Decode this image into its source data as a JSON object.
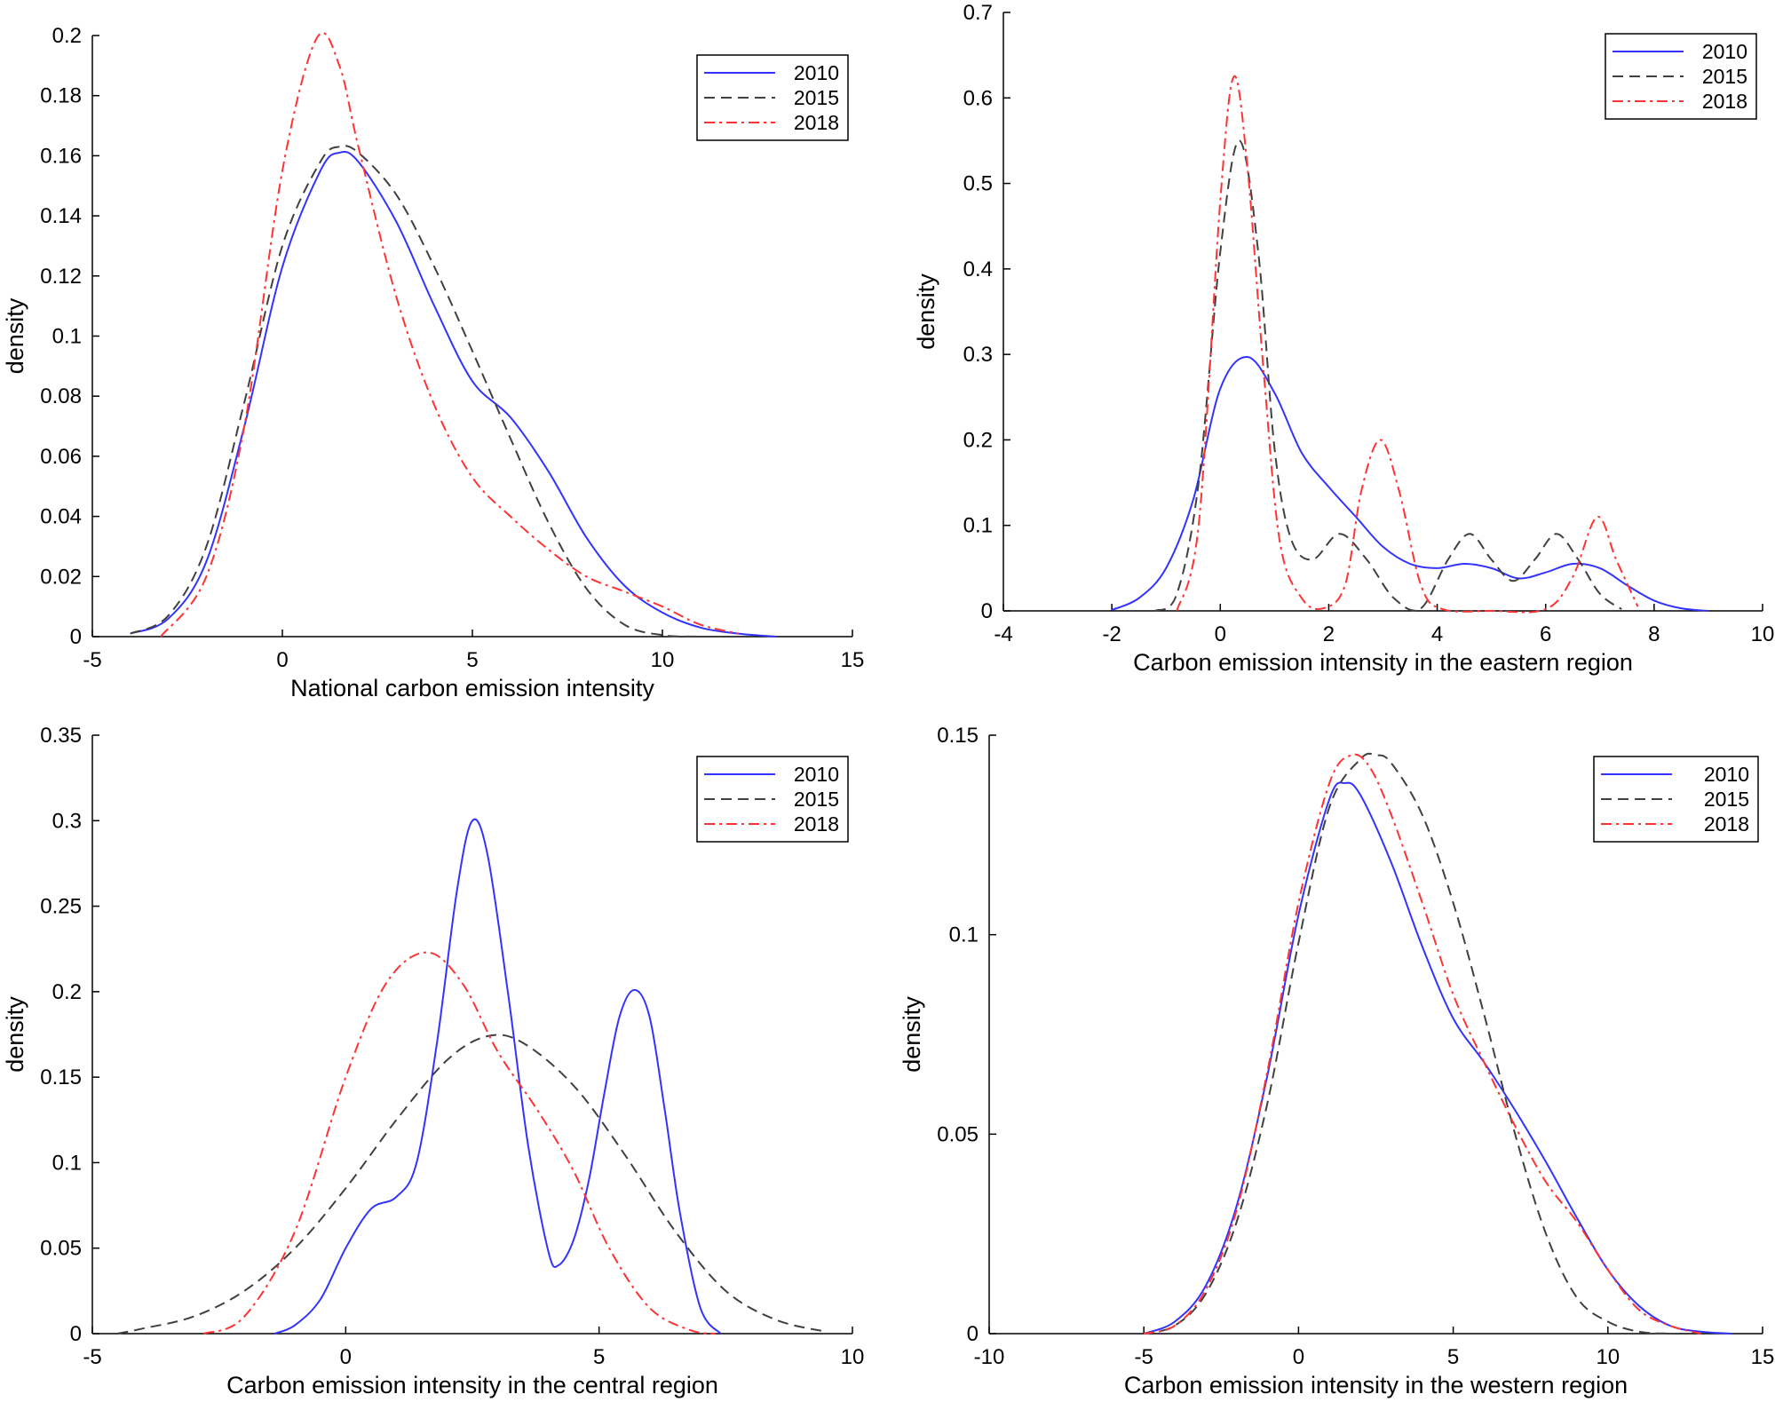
{
  "colors": {
    "2010": "#3333ff",
    "2015": "#404040",
    "2018": "#ff3333"
  },
  "chart_data": [
    {
      "type": "line",
      "xlabel": "National carbon emission intensity",
      "ylabel": "density",
      "xlim": [
        -5,
        15
      ],
      "ylim": [
        0,
        0.2
      ],
      "xticks": [
        -5,
        0,
        5,
        10,
        15
      ],
      "xtick_labels": [
        "-5",
        "0",
        "5",
        "10",
        "15"
      ],
      "yticks": [
        0,
        0.02,
        0.04,
        0.06,
        0.08,
        0.1,
        0.12,
        0.14,
        0.16,
        0.18,
        0.2
      ],
      "ytick_labels": [
        "0",
        "0.02",
        "0.04",
        "0.06",
        "0.08",
        "0.1",
        "0.12",
        "0.14",
        "0.16",
        "0.18",
        "0.2"
      ],
      "legend": "top-right",
      "series": [
        {
          "name": "2010",
          "style": "solid",
          "x": [
            -4,
            -3,
            -2,
            -1,
            0,
            1,
            1.5,
            2,
            3,
            4,
            5,
            6,
            7,
            8,
            9,
            10,
            11,
            12,
            13
          ],
          "y": [
            0.001,
            0.006,
            0.025,
            0.07,
            0.123,
            0.155,
            0.161,
            0.158,
            0.138,
            0.11,
            0.085,
            0.073,
            0.055,
            0.033,
            0.017,
            0.008,
            0.003,
            0.001,
            0.0
          ]
        },
        {
          "name": "2015",
          "style": "dash",
          "x": [
            -4,
            -3,
            -2,
            -1,
            0,
            1,
            1.5,
            2,
            3,
            4,
            5,
            6,
            7,
            8,
            9,
            10,
            11
          ],
          "y": [
            0.001,
            0.007,
            0.03,
            0.078,
            0.13,
            0.158,
            0.163,
            0.161,
            0.147,
            0.123,
            0.095,
            0.066,
            0.038,
            0.016,
            0.004,
            0.0005,
            0.0
          ]
        },
        {
          "name": "2018",
          "style": "dashdot",
          "x": [
            -3.2,
            -2,
            -1,
            0,
            0.9,
            1.5,
            2,
            3,
            4,
            5,
            6,
            7,
            8,
            9,
            10,
            11,
            12
          ],
          "y": [
            0.0,
            0.02,
            0.07,
            0.155,
            0.199,
            0.19,
            0.163,
            0.113,
            0.077,
            0.053,
            0.04,
            0.029,
            0.02,
            0.015,
            0.01,
            0.004,
            0.001
          ]
        }
      ]
    },
    {
      "type": "line",
      "xlabel": "Carbon emission intensity in the eastern region",
      "ylabel": "density",
      "xlim": [
        -4,
        10
      ],
      "ylim": [
        0,
        0.7
      ],
      "xticks": [
        -4,
        -2,
        0,
        2,
        4,
        6,
        8,
        10
      ],
      "xtick_labels": [
        "-4",
        "-2",
        "0",
        "2",
        "4",
        "6",
        "8",
        "10"
      ],
      "yticks": [
        0,
        0.1,
        0.2,
        0.3,
        0.4,
        0.5,
        0.6,
        0.7
      ],
      "ytick_labels": [
        "0",
        "0.1",
        "0.2",
        "0.3",
        "0.4",
        "0.5",
        "0.6",
        "0.7"
      ],
      "legend": "top-right",
      "series": [
        {
          "name": "2010",
          "style": "solid",
          "x": [
            -2,
            -1.5,
            -1,
            -0.5,
            0,
            0.5,
            1,
            1.5,
            2,
            2.5,
            3,
            3.5,
            4,
            4.5,
            5,
            5.5,
            6,
            6.5,
            7,
            7.5,
            8,
            8.5,
            9
          ],
          "y": [
            0.001,
            0.015,
            0.05,
            0.13,
            0.26,
            0.297,
            0.255,
            0.185,
            0.145,
            0.11,
            0.075,
            0.055,
            0.05,
            0.055,
            0.05,
            0.038,
            0.045,
            0.055,
            0.05,
            0.03,
            0.012,
            0.003,
            0.0
          ]
        },
        {
          "name": "2015",
          "style": "dash",
          "x": [
            -1.2,
            -0.8,
            -0.4,
            0,
            0.35,
            0.7,
            1.0,
            1.3,
            1.7,
            2.2,
            2.7,
            3.2,
            3.7,
            4.2,
            4.6,
            5.0,
            5.4,
            5.8,
            6.2,
            6.6,
            7.0,
            7.4
          ],
          "y": [
            0.0,
            0.02,
            0.15,
            0.42,
            0.55,
            0.42,
            0.19,
            0.085,
            0.06,
            0.09,
            0.06,
            0.015,
            0.003,
            0.06,
            0.09,
            0.06,
            0.035,
            0.06,
            0.09,
            0.06,
            0.02,
            0.002
          ]
        },
        {
          "name": "2018",
          "style": "dashdot",
          "x": [
            -0.8,
            -0.4,
            0,
            0.25,
            0.5,
            0.8,
            1.1,
            1.5,
            1.9,
            2.3,
            2.6,
            2.95,
            3.3,
            3.7,
            4.1,
            5.0,
            6.0,
            6.5,
            6.95,
            7.3,
            7.7
          ],
          "y": [
            0.0,
            0.1,
            0.48,
            0.625,
            0.52,
            0.28,
            0.08,
            0.015,
            0.003,
            0.03,
            0.14,
            0.2,
            0.14,
            0.03,
            0.002,
            0.0,
            0.002,
            0.04,
            0.11,
            0.06,
            0.005
          ]
        }
      ]
    },
    {
      "type": "line",
      "xlabel": "Carbon emission intensity in the central region",
      "ylabel": "density",
      "xlim": [
        -5,
        10
      ],
      "ylim": [
        0,
        0.35
      ],
      "xticks": [
        -5,
        0,
        5,
        10
      ],
      "xtick_labels": [
        "-5",
        "0",
        "5",
        "10"
      ],
      "yticks": [
        0,
        0.05,
        0.1,
        0.15,
        0.2,
        0.25,
        0.3,
        0.35
      ],
      "ytick_labels": [
        "0",
        "0.05",
        "0.1",
        "0.15",
        "0.2",
        "0.25",
        "0.3",
        "0.35"
      ],
      "legend": "top-right",
      "series": [
        {
          "name": "2010",
          "style": "solid",
          "x": [
            -1.4,
            -1,
            -0.5,
            0,
            0.5,
            1,
            1.4,
            1.8,
            2.2,
            2.5,
            2.8,
            3.2,
            3.6,
            4.0,
            4.2,
            4.5,
            4.8,
            5.1,
            5.4,
            5.7,
            6.0,
            6.3,
            6.6,
            7.0,
            7.4
          ],
          "y": [
            0.0,
            0.005,
            0.02,
            0.05,
            0.073,
            0.08,
            0.1,
            0.17,
            0.26,
            0.3,
            0.28,
            0.2,
            0.11,
            0.048,
            0.04,
            0.055,
            0.09,
            0.14,
            0.185,
            0.201,
            0.185,
            0.13,
            0.07,
            0.015,
            0.0
          ]
        },
        {
          "name": "2015",
          "style": "dash",
          "x": [
            -4.5,
            -4,
            -3,
            -2,
            -1,
            0,
            1,
            2,
            2.8,
            3.5,
            4.5,
            5.5,
            6.5,
            7.5,
            8.5,
            9.5
          ],
          "y": [
            0.0,
            0.003,
            0.01,
            0.025,
            0.05,
            0.085,
            0.125,
            0.16,
            0.174,
            0.17,
            0.145,
            0.105,
            0.06,
            0.025,
            0.008,
            0.001
          ]
        },
        {
          "name": "2018",
          "style": "dashdot",
          "x": [
            -2.8,
            -2,
            -1,
            0,
            0.8,
            1.6,
            2.3,
            3,
            3.8,
            4.5,
            5.2,
            6,
            6.8,
            7.3
          ],
          "y": [
            0.0,
            0.01,
            0.06,
            0.15,
            0.205,
            0.223,
            0.205,
            0.165,
            0.13,
            0.095,
            0.05,
            0.015,
            0.002,
            0.0
          ]
        }
      ]
    },
    {
      "type": "line",
      "xlabel": "Carbon emission intensity in the western region",
      "ylabel": "density",
      "xlim": [
        -10,
        15
      ],
      "ylim": [
        0,
        0.15
      ],
      "xticks": [
        -10,
        -5,
        0,
        5,
        10,
        15
      ],
      "xtick_labels": [
        "-10",
        "-5",
        "0",
        "5",
        "10",
        "15"
      ],
      "yticks": [
        0,
        0.05,
        0.1,
        0.15
      ],
      "ytick_labels": [
        "0",
        "0.05",
        "0.1",
        "0.15"
      ],
      "legend": "top-right",
      "series": [
        {
          "name": "2010",
          "style": "solid",
          "x": [
            -5,
            -4,
            -3,
            -2,
            -1,
            0,
            1,
            1.5,
            2,
            3,
            4,
            5,
            6,
            7,
            8,
            9,
            10,
            11,
            12,
            13,
            14
          ],
          "y": [
            0.0,
            0.003,
            0.012,
            0.032,
            0.065,
            0.105,
            0.134,
            0.138,
            0.135,
            0.118,
            0.097,
            0.079,
            0.068,
            0.056,
            0.043,
            0.029,
            0.016,
            0.007,
            0.002,
            0.0005,
            0.0
          ]
        },
        {
          "name": "2015",
          "style": "dash",
          "x": [
            -5,
            -4,
            -3,
            -2,
            -1,
            0,
            1,
            2,
            2.5,
            3,
            4,
            5,
            6,
            7,
            8,
            9,
            10,
            11,
            12
          ],
          "y": [
            0.0,
            0.002,
            0.01,
            0.028,
            0.058,
            0.098,
            0.132,
            0.144,
            0.145,
            0.143,
            0.13,
            0.108,
            0.08,
            0.05,
            0.025,
            0.009,
            0.003,
            0.0005,
            0.0
          ]
        },
        {
          "name": "2018",
          "style": "dashdot",
          "x": [
            -5,
            -4,
            -3,
            -2,
            -1,
            0,
            1,
            1.7,
            2.3,
            3,
            4,
            5,
            6,
            7,
            8,
            9,
            10,
            11,
            12,
            13
          ],
          "y": [
            0.0,
            0.002,
            0.011,
            0.031,
            0.066,
            0.108,
            0.138,
            0.145,
            0.142,
            0.13,
            0.108,
            0.085,
            0.068,
            0.052,
            0.038,
            0.028,
            0.016,
            0.006,
            0.002,
            0.0
          ]
        }
      ]
    }
  ]
}
